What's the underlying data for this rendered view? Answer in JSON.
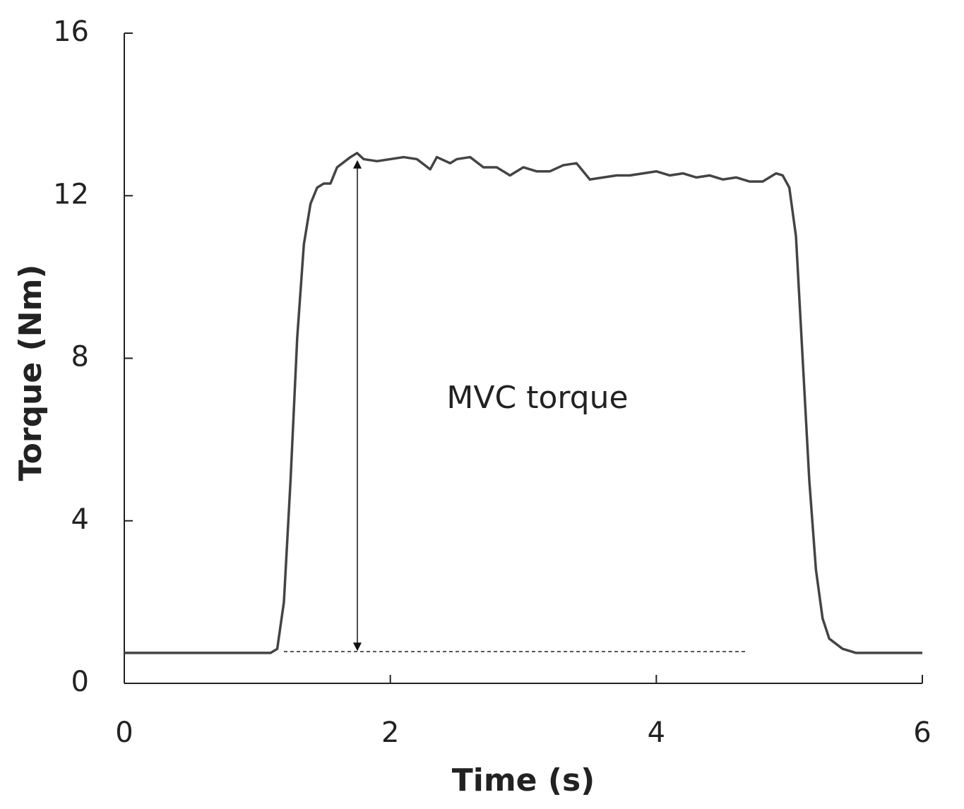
{
  "chart_data": {
    "type": "line",
    "xlabel": "Time (s)",
    "ylabel": "Torque (Nm)",
    "annotation": "MVC torque",
    "color": "#444444",
    "x": [
      0,
      1.1,
      1.15,
      1.2,
      1.25,
      1.3,
      1.35,
      1.4,
      1.45,
      1.5,
      1.55,
      1.6,
      1.7,
      1.75,
      1.8,
      1.9,
      2.0,
      2.1,
      2.2,
      2.3,
      2.35,
      2.45,
      2.5,
      2.6,
      2.7,
      2.8,
      2.9,
      3.0,
      3.1,
      3.2,
      3.3,
      3.4,
      3.5,
      3.6,
      3.7,
      3.8,
      3.9,
      4.0,
      4.1,
      4.2,
      4.3,
      4.4,
      4.5,
      4.6,
      4.7,
      4.8,
      4.9,
      4.95,
      5.0,
      5.05,
      5.1,
      5.15,
      5.2,
      5.25,
      5.3,
      5.4,
      5.5,
      6.0
    ],
    "values": [
      0.75,
      0.75,
      0.85,
      2,
      5,
      8.5,
      10.8,
      11.8,
      12.2,
      12.3,
      12.3,
      12.7,
      12.95,
      13.05,
      12.9,
      12.85,
      12.9,
      12.95,
      12.9,
      12.65,
      12.95,
      12.8,
      12.9,
      12.95,
      12.7,
      12.7,
      12.5,
      12.7,
      12.6,
      12.6,
      12.75,
      12.8,
      12.4,
      12.45,
      12.5,
      12.5,
      12.55,
      12.6,
      12.5,
      12.55,
      12.45,
      12.5,
      12.4,
      12.45,
      12.35,
      12.35,
      12.55,
      12.5,
      12.2,
      11,
      8,
      5,
      2.8,
      1.6,
      1.1,
      0.85,
      0.75,
      0.75
    ],
    "xlim": [
      0,
      6
    ],
    "xticks": [
      0,
      2,
      4,
      6
    ],
    "ylim": [
      0,
      16
    ],
    "yticks": [
      0,
      4,
      8,
      12,
      16
    ],
    "grid": false
  }
}
